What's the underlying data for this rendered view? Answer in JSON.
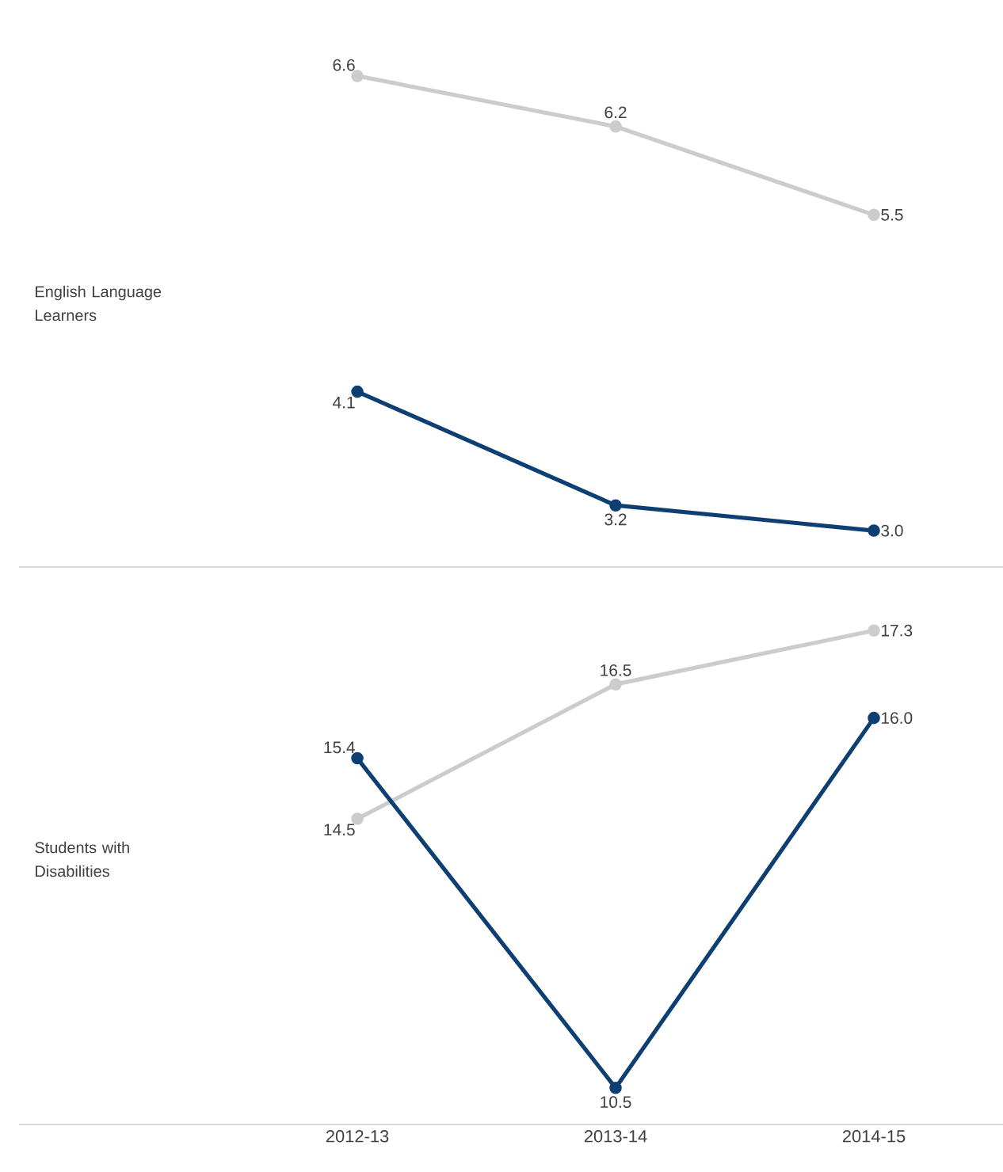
{
  "chart_data": [
    {
      "type": "line",
      "ylabel": "English Language Learners",
      "categories": [
        "2012-13",
        "2013-14",
        "2014-15"
      ],
      "tick_labels": false,
      "marker": "circle",
      "series": [
        {
          "color": "#cccccc",
          "values": [
            6.6,
            6.2,
            5.5
          ],
          "value_labels": [
            "6.6",
            "6.2",
            "5.5"
          ]
        },
        {
          "color": "#0d3f73",
          "values": [
            4.1,
            3.2,
            3.0
          ],
          "value_labels": [
            "4.1",
            "3.2",
            "3.0"
          ]
        }
      ]
    },
    {
      "type": "line",
      "ylabel": "Students with Disabilities",
      "categories": [
        "2012-13",
        "2013-14",
        "2014-15"
      ],
      "tick_labels": "x",
      "marker": "circle",
      "series": [
        {
          "color": "#cccccc",
          "values": [
            14.5,
            16.5,
            17.3
          ],
          "value_labels": [
            "14.5",
            "16.5",
            "17.3"
          ]
        },
        {
          "color": "#0d3f73",
          "values": [
            15.4,
            10.5,
            16.0
          ],
          "value_labels": [
            "15.4",
            "10.5",
            "16.0"
          ]
        }
      ]
    }
  ]
}
